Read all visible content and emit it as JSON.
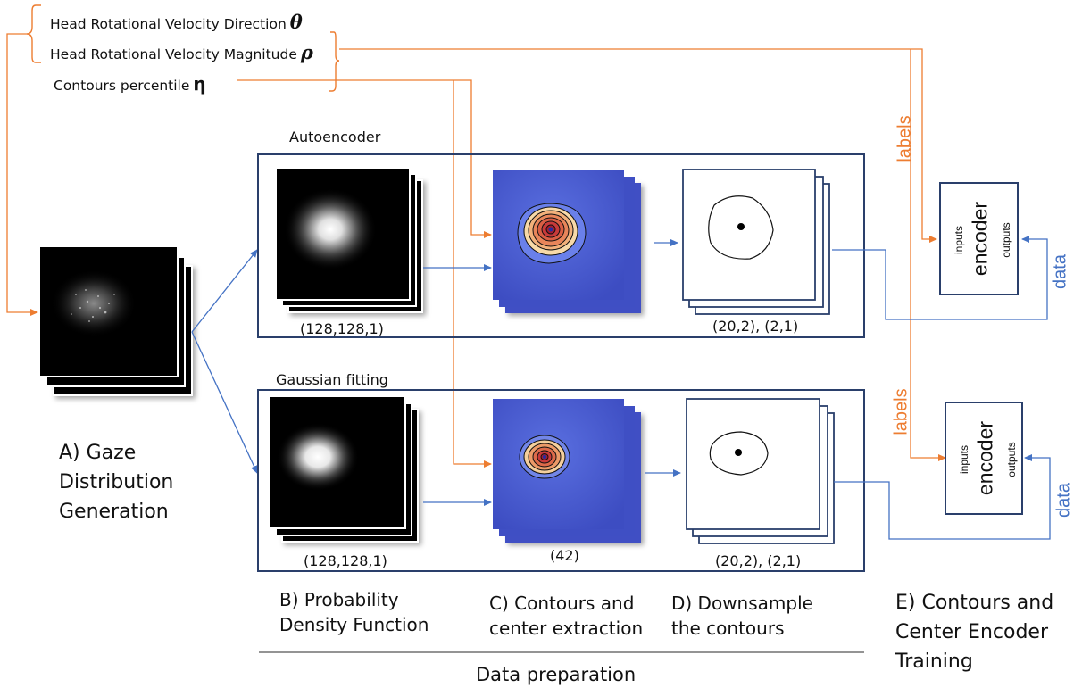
{
  "params": [
    {
      "text": "Head Rotational Velocity Direction",
      "symbol": "θ"
    },
    {
      "text": "Head Rotational Velocity Magnitude",
      "symbol": "ρ"
    },
    {
      "text": "Contours percentile",
      "symbol": "η"
    }
  ],
  "pipelines": {
    "autoencoder": {
      "title": "Autoencoder",
      "pdf_shape": "(128,128,1)",
      "contour_shape": "(20,2), (2,1)"
    },
    "gaussian": {
      "title": "Gaussian fitting",
      "pdf_shape": "(128,128,1)",
      "fit_shape": "(42)",
      "contour_shape": "(20,2), (2,1)"
    }
  },
  "steps": {
    "a": "A) Gaze Distribution Generation",
    "b": "B) Probability Density Function",
    "c": "C) Contours and center extraction",
    "d": "D) Downsample the contours",
    "e": "E) Contours and Center Encoder Training"
  },
  "encoder": {
    "label": "encoder",
    "inputs": "inputs",
    "outputs": "outputs"
  },
  "flow": {
    "labels": "labels",
    "data": "data"
  },
  "data_prep": "Data preparation",
  "colors": {
    "orange": "#ed7d31",
    "blue": "#4472c4",
    "box": "#2a3f6b",
    "contour_bg": "#4353c8"
  }
}
